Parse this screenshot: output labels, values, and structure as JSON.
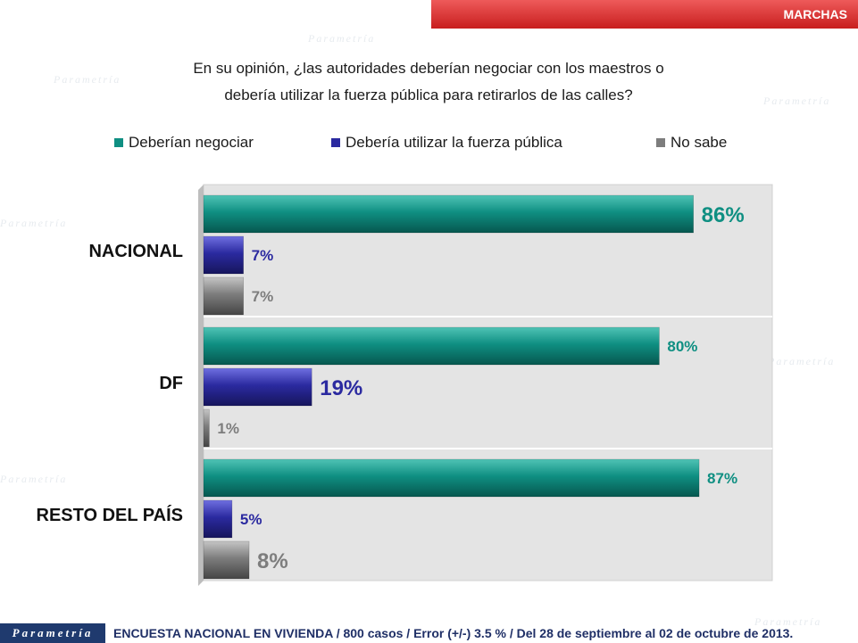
{
  "header": {
    "title": "MARCHAS"
  },
  "question": {
    "line1": "En su opinión, ¿las autoridades deberían negociar con los maestros o",
    "line2": "debería utilizar la fuerza pública para retirarlos de las calles?"
  },
  "colors": {
    "accent": "#d42525",
    "negociar": "#0f8f82",
    "fuerza": "#2b2aa0",
    "nosabe": "#7d7d7d",
    "footer": "#1f3a6e"
  },
  "chart_data": {
    "type": "bar",
    "orientation": "horizontal",
    "categories": [
      "NACIONAL",
      "DF",
      "RESTO DEL PAÍS"
    ],
    "series": [
      {
        "name": "Deberían negociar",
        "values": [
          86,
          80,
          87
        ],
        "labels": [
          "86%",
          "80%",
          "87%"
        ]
      },
      {
        "name": "Debería utilizar la fuerza pública",
        "values": [
          7,
          19,
          5
        ],
        "labels": [
          "7%",
          "19%",
          "5%"
        ]
      },
      {
        "name": "No sabe",
        "values": [
          7,
          1,
          8
        ],
        "labels": [
          "7%",
          "1%",
          "8%"
        ]
      }
    ],
    "xlim": [
      0,
      100
    ],
    "legend_position": "top",
    "grid": false
  },
  "watermark": "Parametría",
  "footer": {
    "logo": "Parametría",
    "text": "ENCUESTA NACIONAL EN VIVIENDA / 800 casos / Error (+/-) 3.5 % / Del 28 de septiembre al 02 de octubre de 2013."
  }
}
